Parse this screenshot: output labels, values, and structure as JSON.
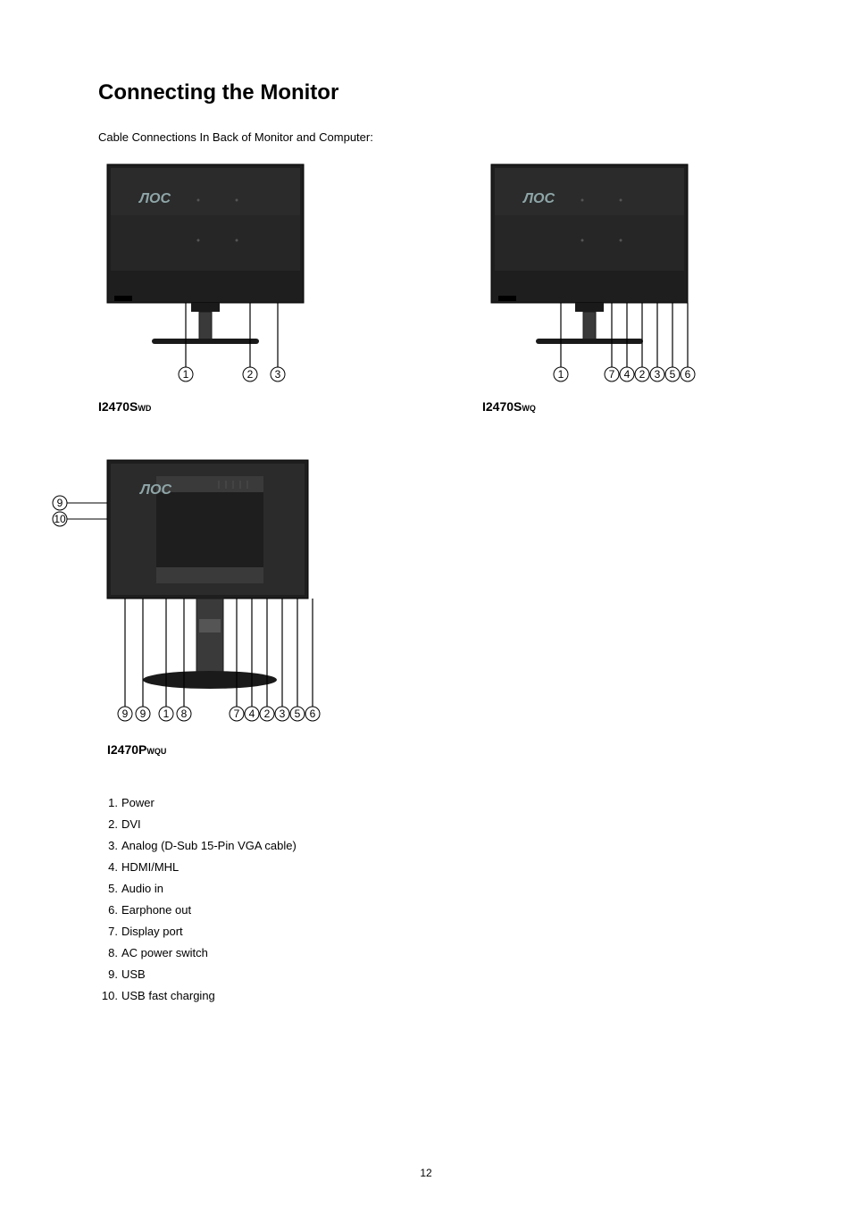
{
  "title": "Connecting the Monitor",
  "subtitle": "Cable Connections In Back of Monitor and Computer:",
  "page_number": "12",
  "colors": {
    "text": "#000000",
    "bg": "#ffffff",
    "monitor_body": "#2b2b2b",
    "monitor_body_dark": "#1e1e1e",
    "monitor_highlight": "#3a3a3a",
    "logo_light": "#8fa6a8",
    "stand": "#3a3a3a",
    "stand_dark": "#262626",
    "base": "#1a1a1a",
    "callout": "#000000"
  },
  "models": {
    "swd": {
      "name": "I2470S",
      "suffix": "WD"
    },
    "swq": {
      "name": "I2470S",
      "suffix": "WQ"
    },
    "pwqu": {
      "name": "I2470P",
      "suffix": "WQU"
    }
  },
  "callouts": {
    "swd": [
      "1",
      "2",
      "3"
    ],
    "swq_left": [
      "1"
    ],
    "swq_right": [
      "7",
      "4",
      "2",
      "3",
      "5",
      "6"
    ],
    "pwqu_side": [
      "9",
      "10"
    ],
    "pwqu_left": [
      "9",
      "9",
      "1",
      "8"
    ],
    "pwqu_right": [
      "7",
      "4",
      "2",
      "3",
      "5",
      "6"
    ]
  },
  "legend": [
    {
      "n": "1",
      "label": "Power"
    },
    {
      "n": "2",
      "label": "DVI"
    },
    {
      "n": "3",
      "label": "Analog (D-Sub 15-Pin VGA cable)"
    },
    {
      "n": "4",
      "label": "HDMI/MHL"
    },
    {
      "n": "5",
      "label": "Audio in"
    },
    {
      "n": "6",
      "label": "Earphone out"
    },
    {
      "n": "7",
      "label": "Display port"
    },
    {
      "n": "8",
      "label": "AC power switch"
    },
    {
      "n": "9",
      "label": "USB"
    },
    {
      "n": "10",
      "label": "USB  fast charging"
    }
  ]
}
